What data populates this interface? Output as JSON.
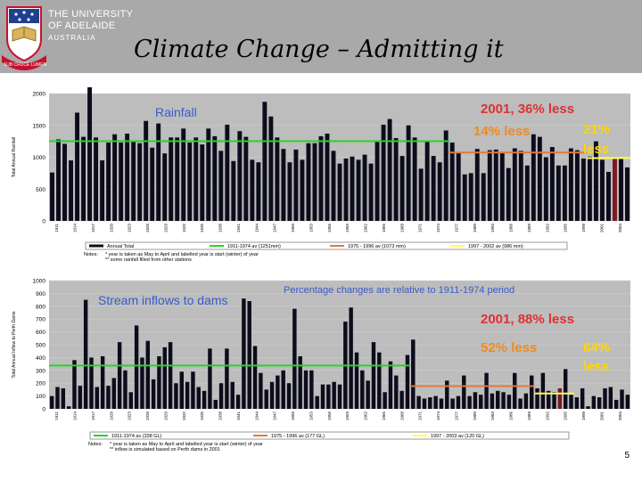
{
  "header": {
    "logo": {
      "line1": "THE UNIVERSITY",
      "line2": "OF ADELAIDE",
      "line3": "AUSTRALIA",
      "motto": "SUB CRUCE LUMEN"
    },
    "title": "Climate Change – Admitting it"
  },
  "page_number": "5",
  "colors": {
    "bar": "#0c0c1c",
    "bar_highlight": "#7a1a22",
    "plot_bg": "#bdbdbd",
    "green_line": "#29d329",
    "orange_line": "#e07a3c",
    "yellow_line": "#ffff50",
    "annot_red": "#e03030",
    "annot_orange": "#f08a20",
    "annot_yellow": "#ffd700",
    "annot_blue": "#3a5cc8"
  },
  "chart_data": [
    {
      "type": "bar",
      "title": "Rainfall",
      "ylim": [
        0,
        2000
      ],
      "yticks": [
        0,
        500,
        1000,
        1500,
        2000
      ],
      "ytick_labels": [
        "0",
        "500",
        "1000",
        "1500",
        "2000"
      ],
      "ylabel": "Total Annual Rainfall",
      "x_tick_labels": [
        "1911",
        "1914",
        "1917",
        "1920",
        "1923",
        "1926",
        "1929",
        "1932",
        "1935",
        "1938",
        "1941",
        "1944",
        "1947",
        "1950",
        "1953",
        "1956",
        "1959",
        "1962",
        "1965",
        "1968",
        "1971",
        "1974",
        "1977",
        "1980",
        "1983",
        "1986",
        "1989",
        "1992",
        "1995",
        "1998",
        "2001",
        "2004"
      ],
      "values": [
        760,
        1280,
        1210,
        950,
        1700,
        1320,
        2130,
        1310,
        950,
        1230,
        1360,
        1230,
        1370,
        1240,
        1220,
        1570,
        1150,
        1530,
        1060,
        1310,
        1310,
        1450,
        1230,
        1310,
        1200,
        1450,
        1330,
        1100,
        1510,
        940,
        1410,
        1320,
        960,
        920,
        1870,
        1640,
        1310,
        1130,
        920,
        1120,
        960,
        1220,
        1220,
        1330,
        1370,
        1100,
        900,
        980,
        1010,
        960,
        1040,
        900,
        1250,
        1510,
        1600,
        1300,
        1020,
        1500,
        1310,
        820,
        1240,
        1020,
        920,
        1420,
        1230,
        1070,
        730,
        750,
        1130,
        750,
        1110,
        1120,
        1080,
        830,
        1140,
        1100,
        870,
        1360,
        1320,
        1000,
        1160,
        870,
        870,
        1140,
        1110,
        980,
        1010,
        1250,
        960,
        770,
        980,
        990,
        840
      ],
      "highlight_index": 90,
      "averages": [
        {
          "label": "1911-1974 av (1251mm)",
          "value": 1251,
          "from": 0,
          "to": 63,
          "color": "#29d329"
        },
        {
          "label": "1975 - 1996 av (1073 mm)",
          "value": 1073,
          "from": 64,
          "to": 85,
          "color": "#e07a3c"
        },
        {
          "label": "1997 - 2002 av (986 mm)",
          "value": 986,
          "from": 86,
          "to": 92,
          "color": "#ffff50"
        }
      ],
      "legend_first": "Annual Total",
      "notes_prefix": "Notes:",
      "notes": [
        "*   year is taken as May to April and labelled year is start (winter) of year",
        "**  some rainfall filled from other stations"
      ],
      "annotations": [
        {
          "text": "2001, 36% less",
          "color": "#e03030"
        },
        {
          "text": "14% less",
          "color": "#f08a20"
        },
        {
          "text": "21%",
          "color": "#ffd700"
        },
        {
          "text": "less",
          "color": "#ffd700"
        }
      ]
    },
    {
      "type": "bar",
      "title": "Stream inflows to dams",
      "subtitle": "Percentage changes are relative to 1911-1974 period",
      "ylim": [
        0,
        1000
      ],
      "yticks": [
        0,
        100,
        200,
        300,
        400,
        500,
        600,
        700,
        800,
        900,
        1000
      ],
      "ytick_labels": [
        "0",
        "100",
        "200",
        "300",
        "400",
        "500",
        "600",
        "700",
        "800",
        "900",
        "1000"
      ],
      "ylabel": "Total Annual Inflow to Perth Dams",
      "x_tick_labels": [
        "1911",
        "1914",
        "1917",
        "1920",
        "1923",
        "1926",
        "1929",
        "1932",
        "1935",
        "1938",
        "1941",
        "1944",
        "1947",
        "1950",
        "1953",
        "1956",
        "1959",
        "1962",
        "1965",
        "1968",
        "1971",
        "1974",
        "1977",
        "1980",
        "1983",
        "1986",
        "1989",
        "1992",
        "1995",
        "1998",
        "2001",
        "2004"
      ],
      "values": [
        100,
        170,
        160,
        20,
        380,
        180,
        850,
        400,
        170,
        410,
        180,
        240,
        520,
        300,
        130,
        650,
        400,
        530,
        230,
        410,
        480,
        520,
        200,
        290,
        210,
        290,
        170,
        140,
        470,
        70,
        200,
        470,
        210,
        110,
        860,
        840,
        490,
        280,
        150,
        210,
        260,
        300,
        200,
        780,
        410,
        300,
        300,
        100,
        190,
        190,
        210,
        190,
        680,
        790,
        440,
        300,
        220,
        520,
        440,
        130,
        370,
        260,
        140,
        420,
        540,
        100,
        80,
        90,
        100,
        80,
        220,
        80,
        100,
        260,
        100,
        130,
        110,
        280,
        120,
        140,
        130,
        110,
        280,
        80,
        120,
        260,
        160,
        280,
        140,
        130,
        160,
        310,
        110,
        90,
        160,
        20,
        100,
        90,
        160,
        170,
        70,
        150,
        110
      ],
      "highlight_index": 90,
      "averages": [
        {
          "label": "1911-1974 av (338 GL)",
          "value": 338,
          "from": 0,
          "to": 63,
          "color": "#29d329"
        },
        {
          "label": "1975 - 1996 av (177 GL)",
          "value": 177,
          "from": 64,
          "to": 85,
          "color": "#e07a3c"
        },
        {
          "label": "1997 - 2003 av (120 GL)",
          "value": 120,
          "from": 86,
          "to": 92,
          "color": "#ffff50"
        }
      ],
      "legend_first": "",
      "notes_prefix": "Notes:",
      "notes": [
        "*   year is taken as May to April and labelled year is start (winter) of year",
        "**  inflow is simulated based on Perth dams in 2001"
      ],
      "annotations": [
        {
          "text": "2001, 88% less",
          "color": "#e03030"
        },
        {
          "text": "52% less",
          "color": "#f08a20"
        },
        {
          "text": "64%",
          "color": "#ffd700"
        },
        {
          "text": "less",
          "color": "#ffd700"
        }
      ]
    }
  ]
}
